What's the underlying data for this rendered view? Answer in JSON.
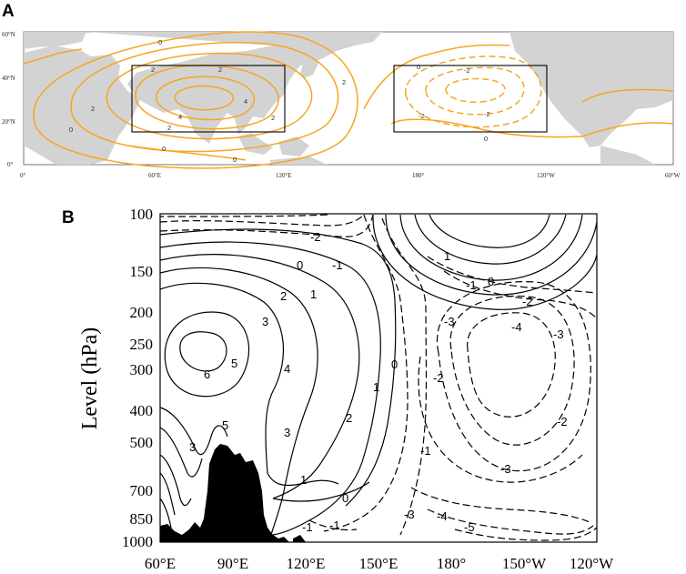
{
  "panel_a": {
    "letter": "A",
    "lat_ticks": [
      "60°N",
      "40°N",
      "20°N",
      "0°"
    ],
    "lon_ticks": [
      "0°",
      "60°E",
      "120°E",
      "180°",
      "120°W",
      "60°W"
    ],
    "contour_labels": [
      "0",
      "2",
      "2",
      "2",
      "2",
      "4",
      "4",
      "0",
      "2",
      "0",
      "0",
      "2",
      "0",
      "-2",
      "-2",
      "-2",
      "0"
    ],
    "colors": {
      "positive": "#f5a623",
      "negative": "#f5a623",
      "land": "#d3d3d3",
      "box": "#000000"
    }
  },
  "panel_b": {
    "letter": "B",
    "y_label": "Level (hPa)",
    "y_ticks": [
      "100",
      "150",
      "200",
      "250",
      "300",
      "400",
      "500",
      "700",
      "850",
      "1000"
    ],
    "x_ticks": [
      "60°E",
      "90°E",
      "120°E",
      "150°E",
      "180°",
      "150°W",
      "120°W"
    ],
    "contour_labels": [
      "-2",
      "-1",
      "0",
      "1",
      "2",
      "3",
      "6",
      "5",
      "4",
      "1",
      "0",
      "2",
      "3",
      "5",
      "3",
      "1",
      "0",
      "-1",
      "1",
      "0",
      "-1",
      "-2",
      "-3",
      "-4",
      "-3",
      "-2",
      "-1",
      "-3",
      "-2",
      "-3",
      "-4",
      "-5",
      "-1"
    ],
    "colors": {
      "contour": "#000000",
      "terrain": "#000000"
    }
  }
}
